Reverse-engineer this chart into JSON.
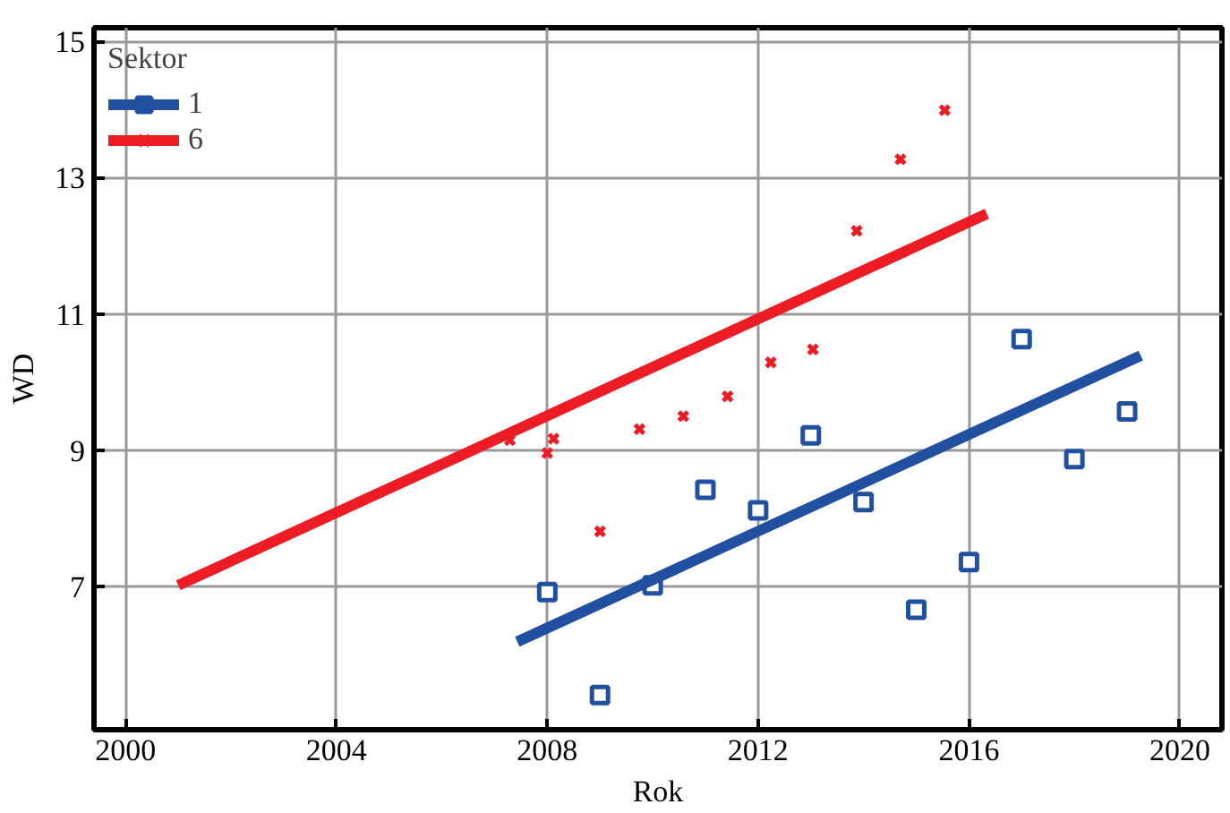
{
  "chart_data": {
    "type": "scatter",
    "xlabel": "Rok",
    "ylabel": "WD",
    "legend_title": "Sektor",
    "xlim": [
      1999.4,
      2020.8
    ],
    "ylim": [
      4.9,
      15.2
    ],
    "xticks": [
      2000,
      2004,
      2008,
      2012,
      2016,
      2020
    ],
    "yticks": [
      7,
      9,
      11,
      13,
      15
    ],
    "grid": true,
    "legend": "top left",
    "series": [
      {
        "name": "1",
        "marker": "square",
        "color": "#2150a0",
        "x": [
          2008,
          2009,
          2010,
          2011,
          2012,
          2013,
          2014,
          2015,
          2016,
          2017,
          2018,
          2019
        ],
        "values": [
          6.92,
          5.41,
          7.02,
          8.42,
          8.12,
          9.22,
          8.24,
          6.66,
          7.36,
          10.63,
          8.87,
          9.57
        ]
      },
      {
        "type": "line",
        "color": "#2150a0",
        "x": [
          2007.43,
          2019.26
        ],
        "values": [
          6.19,
          10.39
        ]
      },
      {
        "name": "6",
        "marker": "cross",
        "color": "#ed1c24",
        "x": [
          2007.29,
          2008.0,
          2008.12,
          2008.98,
          2009.0,
          2009.75,
          2010.58,
          2011.42,
          2012.24,
          2013.04,
          2013.87,
          2014.7,
          2015.54
        ],
        "values": [
          9.15,
          8.96,
          9.17,
          null,
          7.81,
          9.31,
          9.5,
          9.79,
          10.29,
          10.48,
          12.22,
          13.27,
          13.99
        ]
      },
      {
        "type": "line",
        "color": "#ed1c24",
        "x": [
          2001.0,
          2016.34
        ],
        "values": [
          7.02,
          12.47
        ]
      }
    ]
  }
}
